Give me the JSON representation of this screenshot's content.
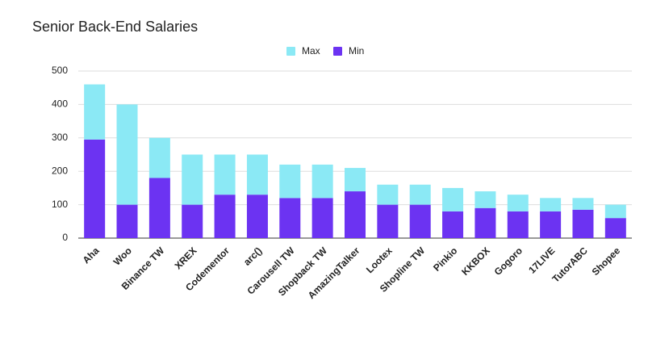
{
  "chart_data": {
    "type": "stacked_bar",
    "title": "Senior Back-End Salaries",
    "categories": [
      "Aha",
      "Woo",
      "Binance TW",
      "XREX",
      "Codementor",
      "arc()",
      "Carousell TW",
      "Shopback TW",
      "AmazingTalker",
      "Lootex",
      "Shopline TW",
      "Pinkio",
      "KKBOX",
      "Gogoro",
      "17LIVE",
      "TutorABC",
      "Shopee"
    ],
    "series": [
      {
        "name": "Max",
        "color": "#8be9f5",
        "values": [
          165,
          300,
          120,
          150,
          120,
          120,
          100,
          100,
          70,
          60,
          60,
          70,
          50,
          50,
          40,
          35,
          40
        ]
      },
      {
        "name": "Min",
        "color": "#6c33f2",
        "values": [
          295,
          100,
          180,
          100,
          130,
          130,
          120,
          120,
          140,
          100,
          100,
          80,
          90,
          80,
          80,
          85,
          60
        ]
      }
    ],
    "ylim": [
      0,
      500
    ],
    "yticks": [
      0,
      100,
      200,
      300,
      400,
      500
    ],
    "grid": true,
    "legend": "top"
  }
}
